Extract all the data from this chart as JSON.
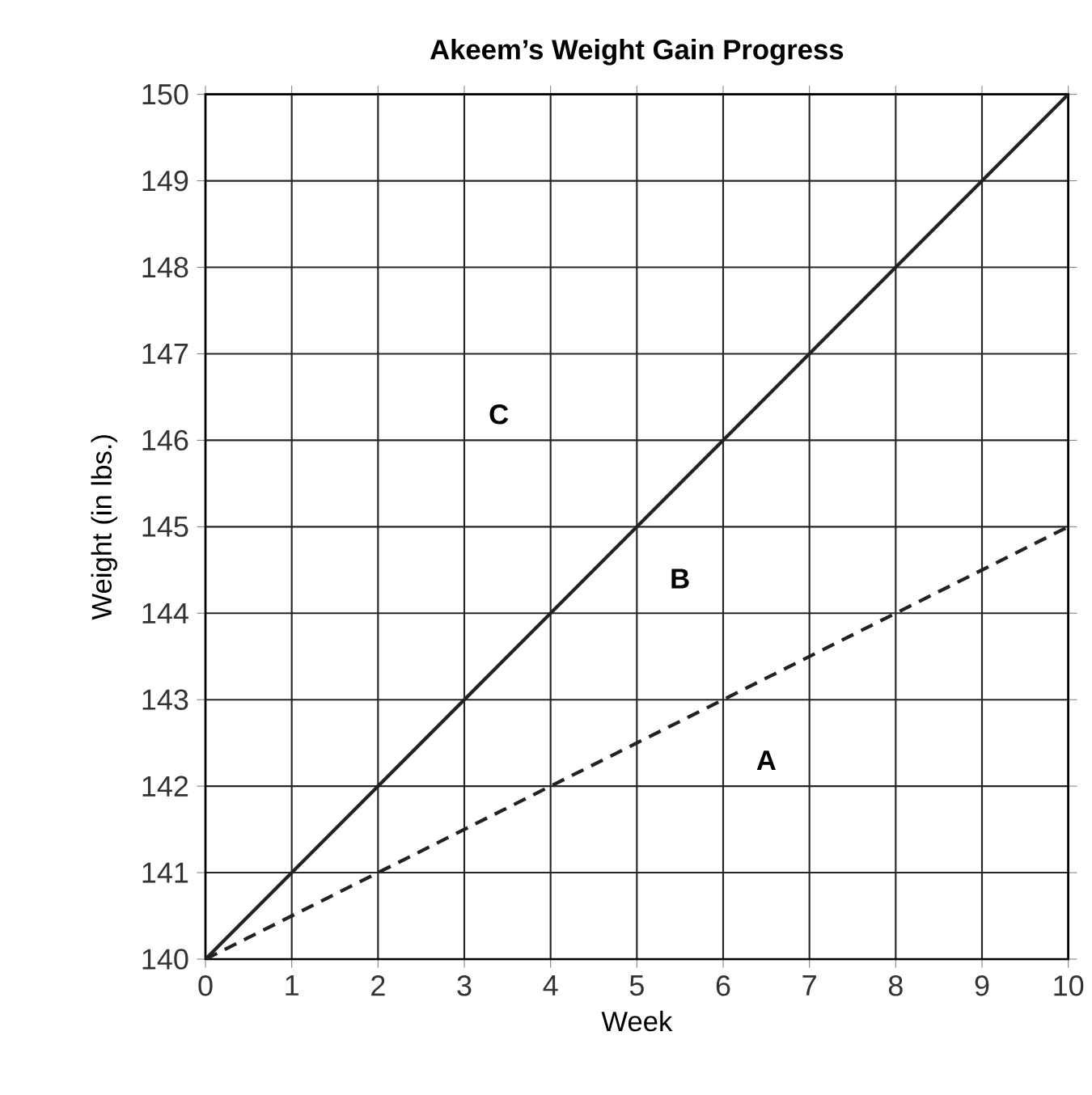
{
  "chart_data": {
    "type": "line",
    "title": "Akeem’s Weight Gain Progress",
    "xlabel": "Week",
    "ylabel": "Weight (in lbs.)",
    "x": [
      0,
      10
    ],
    "series": [
      {
        "color": "#222222",
        "line_style": "solid",
        "values": [
          140,
          150
        ]
      },
      {
        "color": "#222222",
        "line_style": "dashed",
        "values": [
          140,
          145
        ]
      }
    ],
    "xlim": [
      0,
      10
    ],
    "xticks": [
      0,
      1,
      2,
      3,
      4,
      5,
      6,
      7,
      8,
      9,
      10
    ],
    "ylim": [
      140,
      150
    ],
    "yticks": [
      140,
      141,
      142,
      143,
      144,
      145,
      146,
      147,
      148,
      149,
      150
    ],
    "grid": true,
    "marker": "none",
    "annotations": [
      "C",
      "B",
      "A"
    ]
  }
}
